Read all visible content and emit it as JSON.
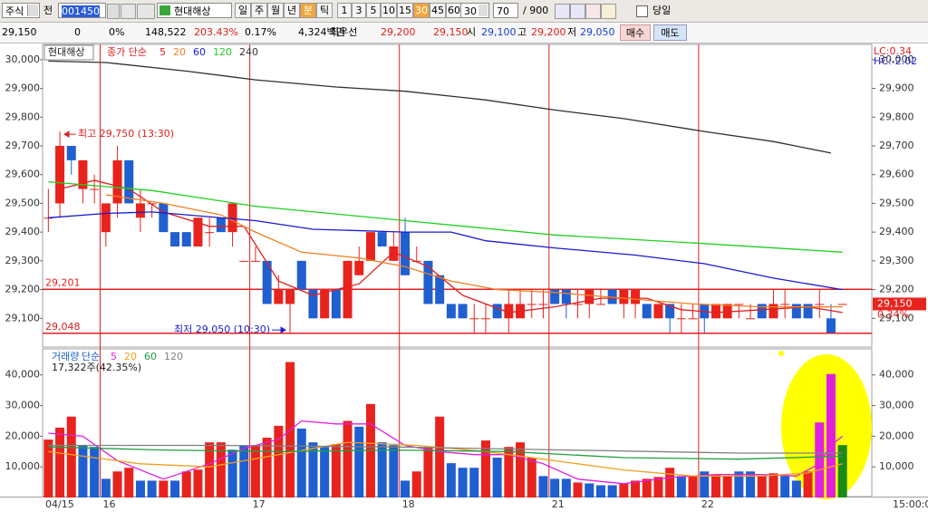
{
  "toolbar": {
    "market": "주식",
    "scope": "전",
    "code": "001450",
    "name": "현대해상",
    "period_buttons": [
      "일",
      "주",
      "월",
      "년",
      "분",
      "틱"
    ],
    "active_period": 4,
    "interval_buttons": [
      "1",
      "3",
      "5",
      "10",
      "15",
      "30",
      "45",
      "60"
    ],
    "active_interval": 5,
    "interval": "30",
    "count": "70",
    "max_count": "/ 900",
    "today": "당일"
  },
  "quote_bar": {
    "price": "29,150",
    "change": "0",
    "change_rate": "0%",
    "volume": "148,522",
    "volume_ratio": "203.43%",
    "turnover": "0.17%",
    "amount": "4,324백만",
    "best_label": "최우선",
    "best_ask": "29,200",
    "best_bid": "29,150",
    "open_label": "시",
    "open": "29,100",
    "high_label": "고",
    "high": "29,200",
    "low_label": "저",
    "low": "29,050",
    "buy": "매수",
    "sell": "매도"
  },
  "chart_data": [
    {
      "type": "candlestick",
      "title": "현대해상",
      "legend_prefix": "종가 단순",
      "open": [
        29450,
        29500,
        29700,
        29550,
        29550,
        29400,
        29500,
        29650,
        29450,
        29500,
        29500,
        29400,
        29400,
        29350,
        29400,
        29450,
        29400,
        29300,
        29300,
        29300,
        29150,
        29150,
        29300,
        29200,
        29100,
        29200,
        29100,
        29250,
        29300,
        29400,
        29300,
        29400,
        29300,
        29300,
        29250,
        29150,
        29150,
        29100,
        29100,
        29150,
        29100,
        29100,
        29150,
        29150,
        29200,
        29200,
        29150,
        29150,
        29150,
        29200,
        29150,
        29150,
        29150,
        29100,
        29150,
        29100,
        29100,
        29150,
        29100,
        29100,
        29150,
        29100,
        29150,
        29100,
        29150,
        29150,
        29150,
        29150,
        29100,
        29150
      ],
      "high": [
        29550,
        29750,
        29700,
        29650,
        29600,
        29500,
        29700,
        29650,
        29550,
        29500,
        29500,
        29400,
        29400,
        29450,
        29450,
        29450,
        29500,
        29300,
        29350,
        29300,
        29250,
        29200,
        29300,
        29200,
        29200,
        29200,
        29300,
        29350,
        29400,
        29400,
        29400,
        29450,
        29350,
        29300,
        29250,
        29150,
        29150,
        29150,
        29150,
        29150,
        29200,
        29200,
        29200,
        29200,
        29200,
        29200,
        29200,
        29200,
        29200,
        29200,
        29200,
        29200,
        29150,
        29150,
        29150,
        29150,
        29150,
        29150,
        29150,
        29150,
        29150,
        29150,
        29150,
        29200,
        29200,
        29150,
        29150,
        29200,
        29150,
        29150
      ],
      "low": [
        29400,
        29450,
        29600,
        29500,
        29500,
        29350,
        29450,
        29500,
        29400,
        29450,
        29400,
        29350,
        29350,
        29350,
        29350,
        29400,
        29350,
        29300,
        29300,
        29150,
        29150,
        29050,
        29200,
        29100,
        29100,
        29100,
        29100,
        29250,
        29300,
        29350,
        29300,
        29250,
        29300,
        29150,
        29150,
        29100,
        29100,
        29050,
        29050,
        29100,
        29050,
        29100,
        29100,
        29100,
        29150,
        29100,
        29100,
        29100,
        29150,
        29150,
        29100,
        29100,
        29100,
        29100,
        29050,
        29050,
        29100,
        29050,
        29100,
        29100,
        29100,
        29100,
        29100,
        29100,
        29100,
        29100,
        29100,
        29100,
        29050,
        29150
      ],
      "close": [
        29450,
        29700,
        29650,
        29650,
        29550,
        29500,
        29650,
        29500,
        29500,
        29500,
        29400,
        29350,
        29350,
        29450,
        29400,
        29400,
        29500,
        29300,
        29300,
        29150,
        29200,
        29200,
        29200,
        29100,
        29200,
        29100,
        29300,
        29300,
        29400,
        29350,
        29350,
        29250,
        29300,
        29150,
        29150,
        29100,
        29100,
        29100,
        29100,
        29100,
        29150,
        29150,
        29150,
        29150,
        29150,
        29150,
        29150,
        29200,
        29150,
        29150,
        29200,
        29200,
        29100,
        29150,
        29100,
        29100,
        29100,
        29100,
        29150,
        29150,
        29150,
        29100,
        29100,
        29150,
        29150,
        29100,
        29100,
        29150,
        29050,
        29150
      ],
      "up_color": "#e8231d",
      "down_color": "#1f5fcf",
      "lines": [
        {
          "name": "5",
          "color": "#e02020",
          "x": [
            1,
            4,
            7,
            10,
            14,
            17,
            20,
            23,
            27,
            30,
            33,
            36,
            40,
            44,
            48,
            52,
            55,
            58,
            62,
            66,
            69
          ],
          "values": [
            29550,
            29580,
            29550,
            29470,
            29420,
            29420,
            29230,
            29180,
            29220,
            29330,
            29280,
            29180,
            29120,
            29140,
            29170,
            29170,
            29130,
            29120,
            29130,
            29140,
            29120
          ]
        },
        {
          "name": "20",
          "color": "#f08020",
          "x": [
            5,
            10,
            15,
            18,
            22,
            27,
            31,
            35,
            39,
            44,
            50,
            56,
            62,
            69
          ],
          "values": [
            29530,
            29500,
            29460,
            29400,
            29330,
            29310,
            29280,
            29230,
            29200,
            29190,
            29170,
            29150,
            29140,
            29140
          ]
        },
        {
          "name": "60",
          "color": "#1a1ad0",
          "x": [
            0,
            5,
            9,
            18,
            23,
            31,
            35,
            38,
            44,
            51,
            57,
            63,
            69
          ],
          "values": [
            29450,
            29465,
            29470,
            29440,
            29410,
            29400,
            29400,
            29370,
            29345,
            29320,
            29290,
            29240,
            29200
          ]
        },
        {
          "name": "120",
          "color": "#20d020",
          "x": [
            0,
            9,
            18,
            31,
            44,
            57,
            69
          ],
          "values": [
            29575,
            29545,
            29490,
            29440,
            29390,
            29360,
            29330
          ]
        },
        {
          "name": "240",
          "color": "#303030",
          "x": [
            0,
            5,
            12,
            18,
            25,
            31,
            38,
            44,
            50,
            57,
            63,
            68
          ],
          "values": [
            29995,
            29990,
            29960,
            29930,
            29905,
            29890,
            29860,
            29825,
            29795,
            29750,
            29715,
            29675
          ]
        }
      ],
      "ylim": [
        29000,
        30050
      ],
      "yticks": [
        {
          "value": 29100,
          "label": "29,100"
        },
        {
          "value": 29200,
          "label": "29,200"
        },
        {
          "value": 29300,
          "label": "29,300"
        },
        {
          "value": 29400,
          "label": "29,400"
        },
        {
          "value": 29500,
          "label": "29,500"
        },
        {
          "value": 29600,
          "label": "29,600"
        },
        {
          "value": 29700,
          "label": "29,700"
        },
        {
          "value": 29800,
          "label": "29,800"
        },
        {
          "value": 29900,
          "label": "29,900"
        },
        {
          "value": 30000,
          "label": "30,000"
        }
      ],
      "hlines": [
        {
          "value": 29201,
          "label": "29,201"
        },
        {
          "value": 29048,
          "label": "29,048"
        }
      ],
      "annotations": [
        {
          "text": "최고 29,750 (13:30)",
          "at": "high",
          "color": "#e02020"
        },
        {
          "text": "최저 29,050 (10:30)",
          "at": "low",
          "color": "#2020d0"
        }
      ],
      "right_labels": [
        {
          "text": "LC:0.34",
          "color": "#e02020"
        },
        {
          "text": "HC:-2.02",
          "color": "#2020d0"
        }
      ],
      "last_price": {
        "value": 29150,
        "label": "29,150"
      },
      "change_label": "0.34%"
    },
    {
      "type": "bar",
      "title": "거래량",
      "legend_prefix": "단순",
      "summary": "17,322주(42.35%)",
      "categories": [
        "04/15",
        null,
        null,
        null,
        null,
        "16",
        null,
        null,
        null,
        null,
        null,
        null,
        null,
        null,
        null,
        null,
        null,
        null,
        "17",
        null,
        null,
        null,
        null,
        null,
        null,
        null,
        null,
        null,
        null,
        null,
        null,
        "18",
        null,
        null,
        null,
        null,
        null,
        null,
        null,
        null,
        null,
        null,
        null,
        null,
        "21",
        null,
        null,
        null,
        null,
        null,
        null,
        null,
        null,
        null,
        null,
        null,
        null,
        "22",
        null,
        null,
        null,
        null,
        null,
        null,
        null,
        null,
        null,
        null,
        null,
        null
      ],
      "values": [
        18900,
        22800,
        26400,
        17100,
        16500,
        6100,
        8500,
        9700,
        5500,
        5500,
        5500,
        5500,
        8500,
        9100,
        18000,
        18000,
        15600,
        17100,
        17100,
        19500,
        23400,
        44200,
        22500,
        18000,
        16500,
        17400,
        25000,
        23100,
        30500,
        18000,
        17100,
        5500,
        8500,
        16500,
        26400,
        11200,
        9700,
        9700,
        18600,
        13000,
        16500,
        18000,
        13000,
        7000,
        6100,
        6100,
        4900,
        4600,
        4000,
        4000,
        4600,
        5500,
        6100,
        6700,
        9700,
        7000,
        7000,
        8500,
        7600,
        7000,
        8500,
        8500,
        7000,
        7900,
        7000,
        5500,
        8500,
        24500,
        40300,
        17100
      ],
      "colors": [
        "#e8231d",
        "#e8231d",
        "#e8231d",
        "#1f5fcf",
        "#1f5fcf",
        "#1f5fcf",
        "#e8231d",
        "#e8231d",
        "#1f5fcf",
        "#1f5fcf",
        "#e8231d",
        "#1f5fcf",
        "#e8231d",
        "#e8231d",
        "#e8231d",
        "#e8231d",
        "#1f5fcf",
        "#1f5fcf",
        "#e8231d",
        "#e8231d",
        "#e8231d",
        "#e8231d",
        "#1f5fcf",
        "#1f5fcf",
        "#1f5fcf",
        "#e8231d",
        "#e8231d",
        "#1f5fcf",
        "#e8231d",
        "#1f5fcf",
        "#1f5fcf",
        "#1f5fcf",
        "#e8231d",
        "#e8231d",
        "#e8231d",
        "#1f5fcf",
        "#1f5fcf",
        "#1f5fcf",
        "#e8231d",
        "#1f5fcf",
        "#e8231d",
        "#e8231d",
        "#e8231d",
        "#1f5fcf",
        "#1f5fcf",
        "#1f5fcf",
        "#e8231d",
        "#1f5fcf",
        "#1f5fcf",
        "#1f5fcf",
        "#e8231d",
        "#e8231d",
        "#e8231d",
        "#e8231d",
        "#e8231d",
        "#1f5fcf",
        "#e8231d",
        "#1f5fcf",
        "#e8231d",
        "#e8231d",
        "#1f5fcf",
        "#1f5fcf",
        "#e8231d",
        "#e8231d",
        "#1f5fcf",
        "#1f5fcf",
        "#e8231d",
        "#e020e0",
        "#e020e0",
        "#1a8a1a"
      ],
      "lines": [
        {
          "name": "5",
          "color": "#e020e0",
          "x": [
            0,
            3,
            6,
            10,
            14,
            17,
            20,
            22,
            25,
            28,
            31,
            34,
            37,
            40,
            43,
            46,
            50,
            54,
            58,
            62,
            65,
            67,
            68,
            69
          ],
          "values": [
            21000,
            20000,
            12000,
            6000,
            11000,
            16000,
            19000,
            25000,
            24000,
            24000,
            17000,
            15000,
            14000,
            14000,
            11000,
            6000,
            4500,
            6500,
            7500,
            7500,
            7000,
            11000,
            17000,
            20000
          ]
        },
        {
          "name": "20",
          "color": "#f0a020",
          "x": [
            0,
            8,
            14,
            20,
            26,
            32,
            38,
            44,
            50,
            56,
            62,
            66,
            69
          ],
          "values": [
            15000,
            11000,
            10000,
            14000,
            18000,
            17000,
            15000,
            12000,
            9000,
            7000,
            7000,
            8000,
            11000
          ]
        },
        {
          "name": "60",
          "color": "#20a040",
          "x": [
            0,
            10,
            20,
            30,
            40,
            50,
            60,
            69
          ],
          "values": [
            16500,
            15500,
            15000,
            15500,
            15000,
            13000,
            12500,
            13500
          ]
        },
        {
          "name": "120",
          "color": "#808080",
          "x": [
            0,
            15,
            30,
            45,
            60,
            69
          ],
          "values": [
            17000,
            17000,
            16500,
            15500,
            14500,
            14500
          ]
        }
      ],
      "ylim": [
        0,
        48500
      ],
      "yticks": [
        {
          "value": 10000,
          "label": "10,000"
        },
        {
          "value": 20000,
          "label": "20,000"
        },
        {
          "value": 30000,
          "label": "30,000"
        },
        {
          "value": 40000,
          "label": "40,000"
        }
      ],
      "time_label": "15:00:00"
    }
  ]
}
